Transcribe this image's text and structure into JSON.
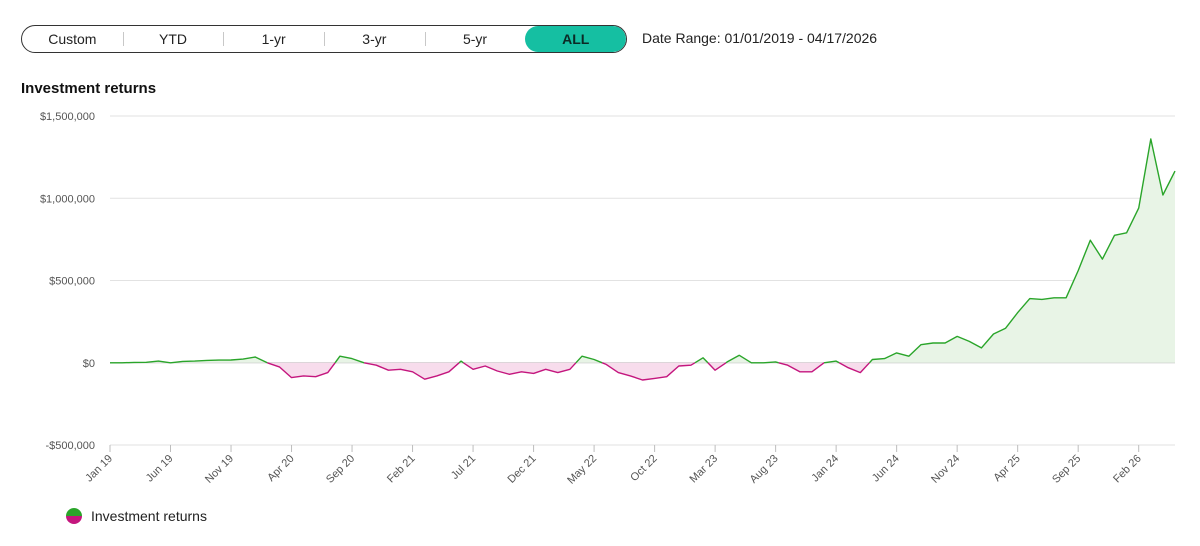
{
  "range_selector": {
    "buttons": [
      "Custom",
      "YTD",
      "1-yr",
      "3-yr",
      "5-yr",
      "ALL"
    ],
    "active": "ALL"
  },
  "date_range": "Date Range: 01/01/2019 - 04/17/2026",
  "colors": {
    "positive": "#2aa52a",
    "negative": "#c4167e",
    "positive_fill": "#e8f4e6",
    "negative_fill": "#f7dcec",
    "accent": "#15bfa2"
  },
  "legend": {
    "label": "Investment returns",
    "icon": "half-green-half-magenta-dot"
  },
  "chart_data": {
    "type": "area",
    "title": "Investment returns",
    "xlabel": "",
    "ylabel": "",
    "ylim": [
      -500000,
      1500000
    ],
    "grid": "horizontal",
    "legend_position": "bottom-left",
    "y_ticks": [
      {
        "value": 1500000,
        "label": "$1,500,000"
      },
      {
        "value": 1000000,
        "label": "$1,000,000"
      },
      {
        "value": 500000,
        "label": "$500,000"
      },
      {
        "value": 0,
        "label": "$0"
      },
      {
        "value": -500000,
        "label": "-$500,000"
      }
    ],
    "x_ticks": [
      "Jan 19",
      "Jun 19",
      "Nov 19",
      "Apr 20",
      "Sep 20",
      "Feb 21",
      "Jul 21",
      "Dec 21",
      "May 22",
      "Oct 22",
      "Mar 23",
      "Aug 23",
      "Jan 24",
      "Jun 24",
      "Nov 24",
      "Apr 25",
      "Sep 25",
      "Feb 26"
    ],
    "series": [
      {
        "name": "Investment returns",
        "values": [
          0,
          0,
          2000,
          3000,
          10000,
          0,
          8000,
          10000,
          14000,
          16000,
          17000,
          22000,
          35000,
          0,
          -25000,
          -90000,
          -80000,
          -85000,
          -60000,
          40000,
          25000,
          0,
          -15000,
          -45000,
          -40000,
          -55000,
          -100000,
          -80000,
          -55000,
          10000,
          -40000,
          -20000,
          -50000,
          -70000,
          -55000,
          -65000,
          -40000,
          -60000,
          -40000,
          40000,
          20000,
          -10000,
          -60000,
          -80000,
          -105000,
          -95000,
          -85000,
          -20000,
          -15000,
          30000,
          -45000,
          5000,
          45000,
          0,
          0,
          5000,
          -15000,
          -55000,
          -55000,
          0,
          10000,
          -30000,
          -60000,
          20000,
          25000,
          60000,
          40000,
          110000,
          120000,
          120000,
          160000,
          130000,
          90000,
          175000,
          210000,
          305000,
          390000,
          385000,
          395000,
          395000,
          560000,
          745000,
          630000,
          775000,
          790000,
          940000,
          1360000,
          1020000,
          1165000
        ]
      }
    ]
  }
}
